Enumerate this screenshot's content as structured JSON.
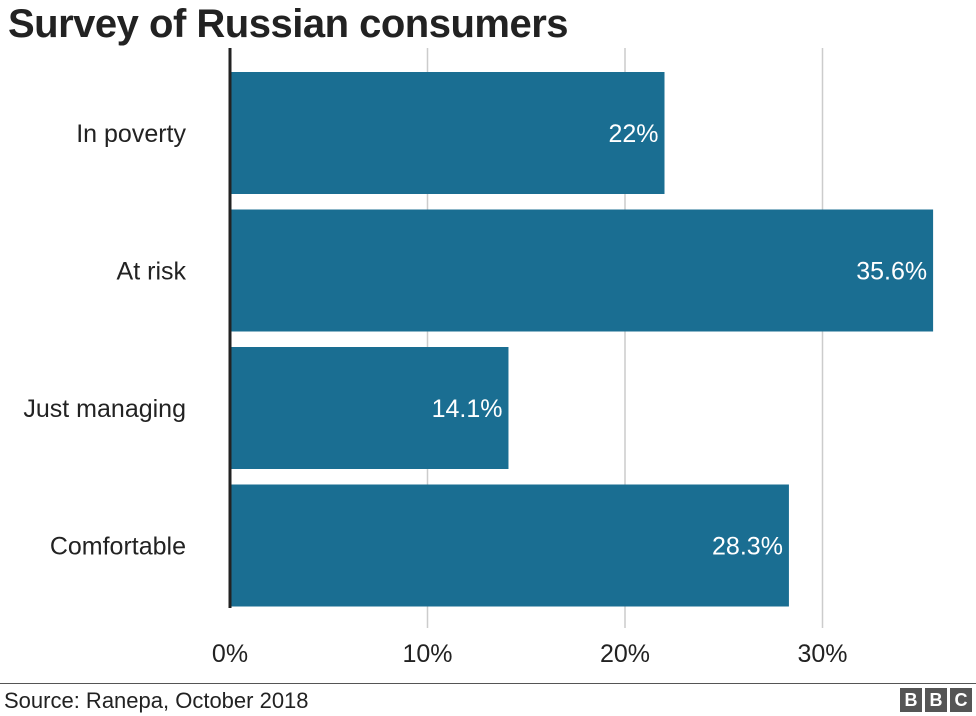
{
  "chart_data": {
    "type": "bar",
    "orientation": "horizontal",
    "title": "Survey of Russian consumers",
    "categories": [
      "In poverty",
      "At risk",
      "Just managing",
      "Comfortable"
    ],
    "values": [
      22,
      35.6,
      14.1,
      28.3
    ],
    "value_labels": [
      "22%",
      "35.6%",
      "14.1%",
      "28.3%"
    ],
    "xlim": [
      0,
      37
    ],
    "x_ticks": [
      0,
      10,
      20,
      30
    ],
    "x_tick_labels": [
      "0%",
      "10%",
      "20%",
      "30%"
    ],
    "grid": true,
    "xlabel": "",
    "ylabel": "",
    "bar_color": "#1a6e92"
  },
  "footer": {
    "source": "Source: Ranepa, October 2018",
    "logo_letters": [
      "B",
      "B",
      "C"
    ]
  },
  "colors": {
    "bar": "#1a6e92",
    "grid": "#cccccc",
    "axis": "#222222",
    "logo_bg": "#555555"
  }
}
